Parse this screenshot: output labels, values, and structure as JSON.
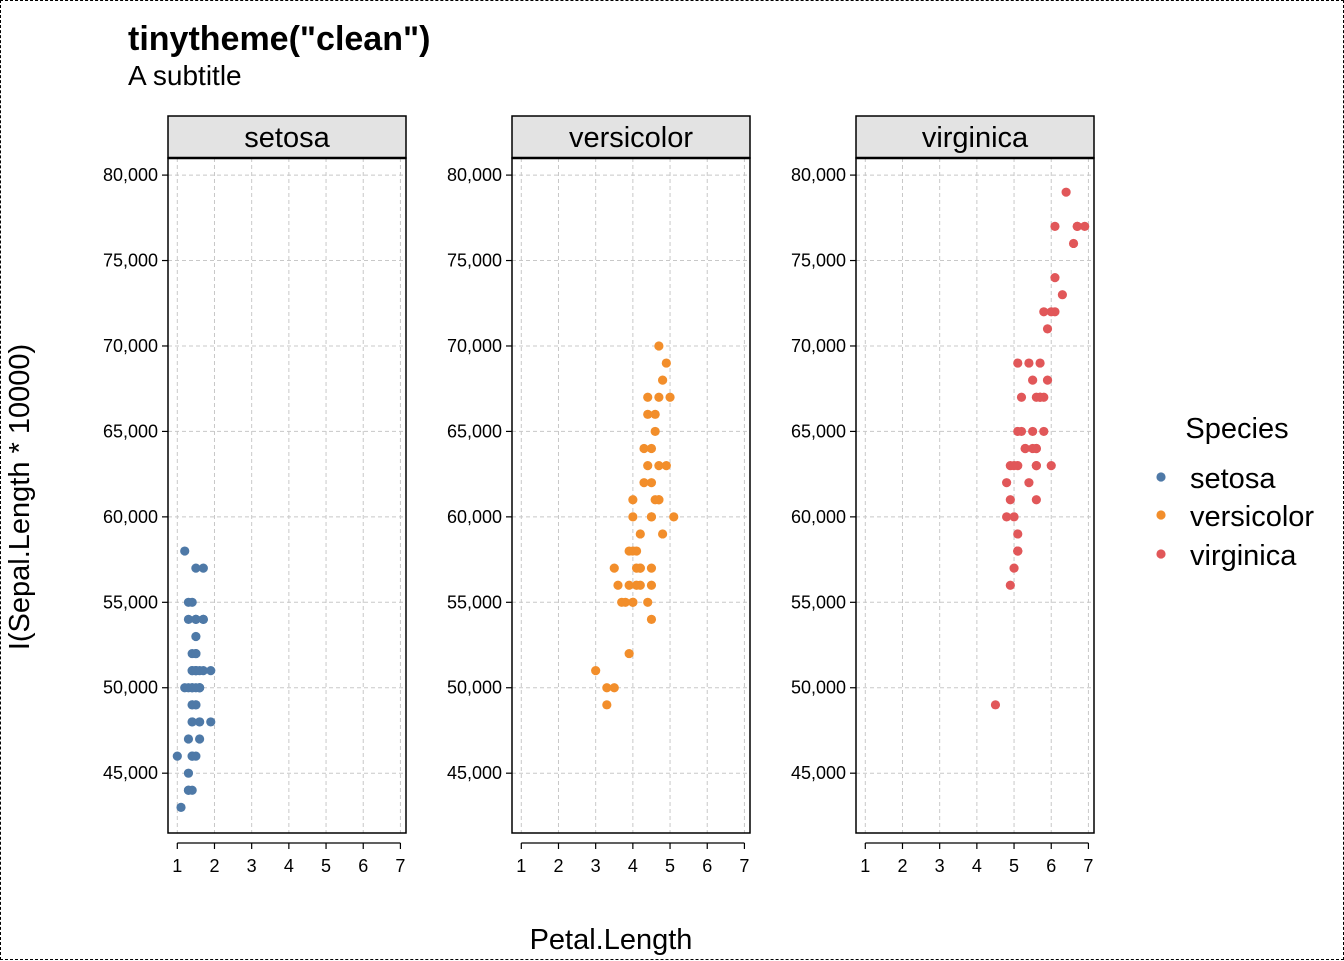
{
  "title": "tinytheme(\"clean\")",
  "subtitle": "A subtitle",
  "chart_data": {
    "type": "scatter",
    "facets": [
      "setosa",
      "versicolor",
      "virginica"
    ],
    "xlabel": "Petal.Length",
    "ylabel": "I(Sepal.Length * 10000)",
    "xlim": [
      0.75,
      7.15
    ],
    "ylim": [
      41500,
      81000
    ],
    "xticks": [
      1,
      2,
      3,
      4,
      5,
      6,
      7
    ],
    "yticks": [
      45000,
      50000,
      55000,
      60000,
      65000,
      70000,
      75000,
      80000
    ],
    "ytick_labels": [
      "45,000",
      "50,000",
      "55,000",
      "60,000",
      "65,000",
      "70,000",
      "75,000",
      "80,000"
    ],
    "grid": true,
    "legend": {
      "title": "Species",
      "placement": "right",
      "entries": [
        "setosa",
        "versicolor",
        "virginica"
      ]
    },
    "colors": {
      "setosa": "#4e79a7",
      "versicolor": "#f28e2b",
      "virginica": "#e15759"
    },
    "series": [
      {
        "name": "setosa",
        "points": [
          [
            1.4,
            51000
          ],
          [
            1.4,
            49000
          ],
          [
            1.3,
            47000
          ],
          [
            1.5,
            46000
          ],
          [
            1.4,
            50000
          ],
          [
            1.7,
            54000
          ],
          [
            1.4,
            46000
          ],
          [
            1.5,
            50000
          ],
          [
            1.4,
            44000
          ],
          [
            1.5,
            49000
          ],
          [
            1.5,
            54000
          ],
          [
            1.6,
            48000
          ],
          [
            1.4,
            48000
          ],
          [
            1.1,
            43000
          ],
          [
            1.2,
            58000
          ],
          [
            1.5,
            57000
          ],
          [
            1.3,
            54000
          ],
          [
            1.4,
            51000
          ],
          [
            1.7,
            57000
          ],
          [
            1.5,
            51000
          ],
          [
            1.7,
            54000
          ],
          [
            1.5,
            51000
          ],
          [
            1.0,
            46000
          ],
          [
            1.7,
            51000
          ],
          [
            1.9,
            48000
          ],
          [
            1.6,
            50000
          ],
          [
            1.6,
            50000
          ],
          [
            1.5,
            52000
          ],
          [
            1.4,
            52000
          ],
          [
            1.6,
            47000
          ],
          [
            1.6,
            48000
          ],
          [
            1.5,
            54000
          ],
          [
            1.5,
            52000
          ],
          [
            1.4,
            55000
          ],
          [
            1.5,
            49000
          ],
          [
            1.2,
            50000
          ],
          [
            1.3,
            55000
          ],
          [
            1.4,
            49000
          ],
          [
            1.3,
            44000
          ],
          [
            1.5,
            51000
          ],
          [
            1.3,
            50000
          ],
          [
            1.3,
            45000
          ],
          [
            1.3,
            44000
          ],
          [
            1.6,
            50000
          ],
          [
            1.9,
            51000
          ],
          [
            1.4,
            48000
          ],
          [
            1.6,
            51000
          ],
          [
            1.4,
            46000
          ],
          [
            1.5,
            53000
          ],
          [
            1.4,
            50000
          ]
        ]
      },
      {
        "name": "versicolor",
        "points": [
          [
            4.7,
            70000
          ],
          [
            4.5,
            64000
          ],
          [
            4.9,
            69000
          ],
          [
            4.0,
            55000
          ],
          [
            4.6,
            65000
          ],
          [
            4.5,
            57000
          ],
          [
            4.7,
            63000
          ],
          [
            3.3,
            49000
          ],
          [
            4.6,
            66000
          ],
          [
            3.9,
            52000
          ],
          [
            3.5,
            50000
          ],
          [
            4.2,
            59000
          ],
          [
            4.0,
            60000
          ],
          [
            4.7,
            61000
          ],
          [
            3.6,
            56000
          ],
          [
            4.4,
            67000
          ],
          [
            4.5,
            56000
          ],
          [
            4.1,
            58000
          ],
          [
            4.5,
            62000
          ],
          [
            3.9,
            56000
          ],
          [
            4.8,
            59000
          ],
          [
            4.0,
            61000
          ],
          [
            4.9,
            63000
          ],
          [
            4.7,
            61000
          ],
          [
            4.3,
            64000
          ],
          [
            4.4,
            66000
          ],
          [
            4.8,
            68000
          ],
          [
            5.0,
            67000
          ],
          [
            4.5,
            60000
          ],
          [
            3.5,
            57000
          ],
          [
            3.8,
            55000
          ],
          [
            3.7,
            55000
          ],
          [
            3.9,
            58000
          ],
          [
            5.1,
            60000
          ],
          [
            4.5,
            54000
          ],
          [
            4.5,
            60000
          ],
          [
            4.7,
            67000
          ],
          [
            4.4,
            63000
          ],
          [
            4.1,
            56000
          ],
          [
            4.0,
            55000
          ],
          [
            4.4,
            55000
          ],
          [
            4.6,
            61000
          ],
          [
            4.0,
            58000
          ],
          [
            3.3,
            50000
          ],
          [
            4.2,
            56000
          ],
          [
            4.2,
            57000
          ],
          [
            4.2,
            57000
          ],
          [
            4.3,
            62000
          ],
          [
            3.0,
            51000
          ],
          [
            4.1,
            57000
          ]
        ]
      },
      {
        "name": "virginica",
        "points": [
          [
            6.0,
            63000
          ],
          [
            5.1,
            58000
          ],
          [
            5.9,
            71000
          ],
          [
            5.6,
            63000
          ],
          [
            5.8,
            65000
          ],
          [
            6.6,
            76000
          ],
          [
            4.5,
            49000
          ],
          [
            6.3,
            73000
          ],
          [
            5.8,
            67000
          ],
          [
            6.1,
            72000
          ],
          [
            5.1,
            65000
          ],
          [
            5.3,
            64000
          ],
          [
            5.5,
            68000
          ],
          [
            5.0,
            57000
          ],
          [
            5.1,
            58000
          ],
          [
            5.3,
            64000
          ],
          [
            5.5,
            65000
          ],
          [
            6.7,
            77000
          ],
          [
            6.9,
            77000
          ],
          [
            5.0,
            60000
          ],
          [
            5.7,
            69000
          ],
          [
            4.9,
            56000
          ],
          [
            6.7,
            77000
          ],
          [
            4.9,
            63000
          ],
          [
            5.7,
            67000
          ],
          [
            6.0,
            72000
          ],
          [
            4.8,
            62000
          ],
          [
            4.9,
            61000
          ],
          [
            5.6,
            64000
          ],
          [
            5.8,
            72000
          ],
          [
            6.1,
            74000
          ],
          [
            6.4,
            79000
          ],
          [
            5.6,
            64000
          ],
          [
            5.1,
            63000
          ],
          [
            5.6,
            61000
          ],
          [
            6.1,
            77000
          ],
          [
            5.6,
            63000
          ],
          [
            5.5,
            64000
          ],
          [
            4.8,
            60000
          ],
          [
            5.4,
            69000
          ],
          [
            5.6,
            67000
          ],
          [
            5.1,
            69000
          ],
          [
            5.1,
            58000
          ],
          [
            5.9,
            68000
          ],
          [
            5.7,
            67000
          ],
          [
            5.2,
            67000
          ],
          [
            5.0,
            63000
          ],
          [
            5.2,
            65000
          ],
          [
            5.4,
            62000
          ],
          [
            5.1,
            59000
          ]
        ]
      }
    ]
  }
}
